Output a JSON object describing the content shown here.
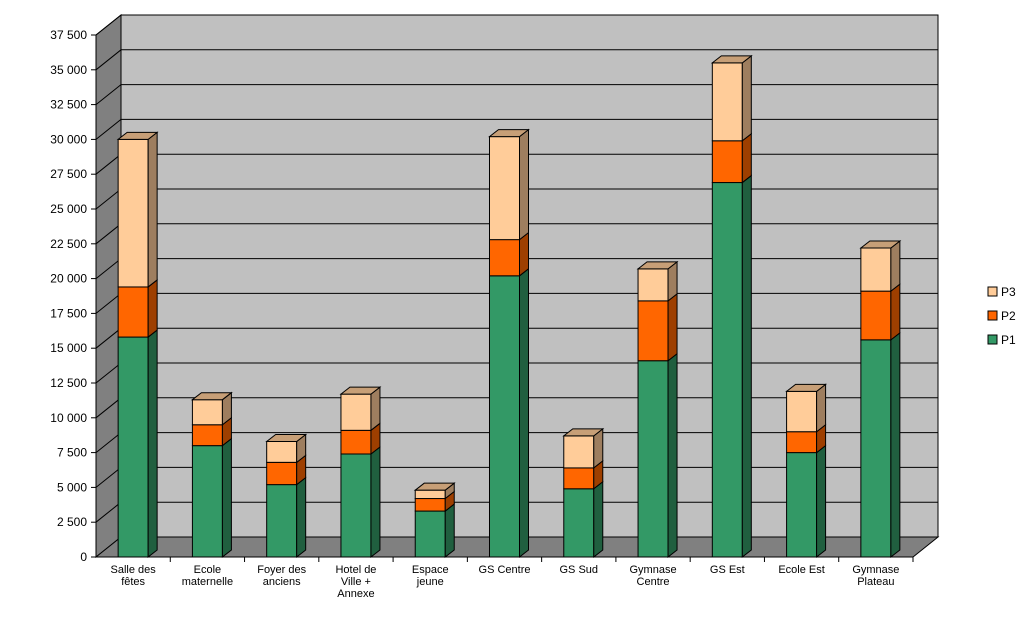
{
  "chart_data": {
    "type": "bar",
    "stacked": true,
    "three_d": true,
    "categories": [
      [
        "Salle des",
        "fêtes"
      ],
      [
        "Ecole",
        "maternelle"
      ],
      [
        "Foyer des",
        "anciens"
      ],
      [
        "Hotel de",
        "Ville +",
        "Annexe"
      ],
      [
        "Espace",
        "jeune"
      ],
      [
        "GS Centre"
      ],
      [
        "GS Sud"
      ],
      [
        "Gymnase",
        "Centre"
      ],
      [
        "GS Est"
      ],
      [
        "Ecole Est"
      ],
      [
        "Gymnase",
        "Plateau"
      ]
    ],
    "series": [
      {
        "name": "P1",
        "color": "#339966",
        "values": [
          15800,
          8000,
          5200,
          7400,
          3300,
          20200,
          4900,
          14100,
          26900,
          7500,
          15600
        ]
      },
      {
        "name": "P2",
        "color": "#FF6600",
        "values": [
          3600,
          1500,
          1600,
          1700,
          900,
          2600,
          1500,
          4300,
          3000,
          1500,
          3500
        ]
      },
      {
        "name": "P3",
        "color": "#FFCC99",
        "values": [
          10600,
          1800,
          1500,
          2600,
          600,
          7400,
          2300,
          2300,
          5600,
          2900,
          3100
        ]
      }
    ],
    "yticks": [
      "0",
      "2 500",
      "5 000",
      "7 500",
      "10 000",
      "12 500",
      "15 000",
      "17 500",
      "20 000",
      "22 500",
      "25 000",
      "27 500",
      "30 000",
      "32 500",
      "35 000",
      "37 500"
    ],
    "ylim": [
      0,
      37500
    ],
    "ystep": 2500,
    "legend": [
      "P3",
      "P2",
      "P1"
    ],
    "legend_position": "right",
    "grid": true,
    "title": "",
    "xlabel": "",
    "ylabel": ""
  }
}
